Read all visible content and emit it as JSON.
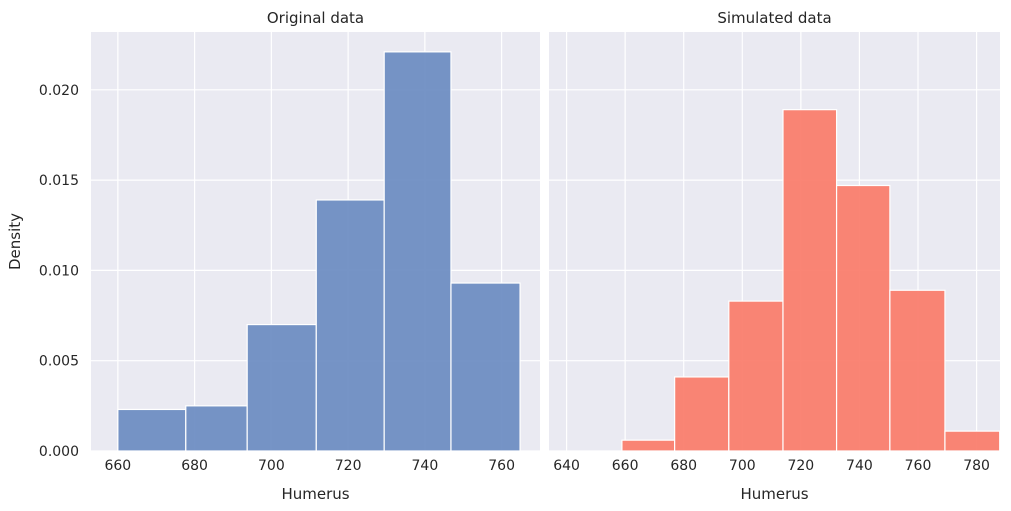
{
  "chart_data": [
    {
      "type": "histogram",
      "title": "Original data",
      "xlabel": "Humerus",
      "ylabel": "Density",
      "xlim": [
        653,
        770
      ],
      "ylim": [
        0,
        0.0232
      ],
      "xticks": [
        660,
        680,
        700,
        720,
        740,
        760
      ],
      "yticks": [
        0.0,
        0.005,
        0.01,
        0.015,
        0.02
      ],
      "ytick_labels": [
        "0.000",
        "0.005",
        "0.010",
        "0.015",
        "0.020"
      ],
      "bar_color": "#6a8bc1",
      "bins": [
        {
          "x0": 660.0,
          "x1": 677.7,
          "value": 0.0023
        },
        {
          "x0": 677.7,
          "x1": 693.7,
          "value": 0.0025
        },
        {
          "x0": 693.7,
          "x1": 711.7,
          "value": 0.007
        },
        {
          "x0": 711.7,
          "x1": 729.4,
          "value": 0.0139
        },
        {
          "x0": 729.4,
          "x1": 746.8,
          "value": 0.0221
        },
        {
          "x0": 746.8,
          "x1": 764.8,
          "value": 0.0093
        }
      ]
    },
    {
      "type": "histogram",
      "title": "Simulated data",
      "xlabel": "Humerus",
      "ylabel": "",
      "xlim": [
        634,
        788
      ],
      "ylim": [
        0,
        0.0232
      ],
      "xticks": [
        640,
        660,
        680,
        700,
        720,
        740,
        760,
        780
      ],
      "yticks": [
        0.0,
        0.005,
        0.01,
        0.015,
        0.02
      ],
      "ytick_labels": [
        "",
        "",
        "",
        "",
        ""
      ],
      "bar_color": "#fa7b69",
      "bins": [
        {
          "x0": 640.5,
          "x1": 658.9,
          "value": 0.0
        },
        {
          "x0": 658.9,
          "x1": 676.9,
          "value": 0.0006
        },
        {
          "x0": 676.9,
          "x1": 695.4,
          "value": 0.0041
        },
        {
          "x0": 695.4,
          "x1": 713.9,
          "value": 0.0083
        },
        {
          "x0": 713.9,
          "x1": 732.2,
          "value": 0.0189
        },
        {
          "x0": 732.2,
          "x1": 750.4,
          "value": 0.0147
        },
        {
          "x0": 750.4,
          "x1": 769.2,
          "value": 0.0089
        },
        {
          "x0": 769.2,
          "x1": 787.9,
          "value": 0.0011
        }
      ]
    }
  ],
  "style": {
    "panel_background": "#eaeaf2",
    "grid_color": "#ffffff",
    "text_color": "#262626"
  }
}
